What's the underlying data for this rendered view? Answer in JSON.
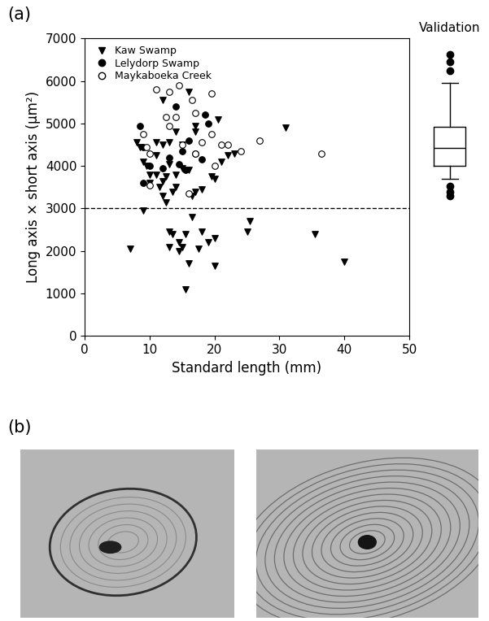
{
  "chart_data": {
    "type": "scatter",
    "panel_label": "(a)",
    "x_label": "Standard length (mm)",
    "y_label": "Long axis × short axis (µm²)",
    "xlim": [
      0,
      50
    ],
    "xticks": [
      0,
      10,
      20,
      30,
      40,
      50
    ],
    "ylim": [
      0,
      7000
    ],
    "yticks": [
      0,
      1000,
      2000,
      3000,
      4000,
      5000,
      6000,
      7000
    ],
    "legend": "upper left",
    "reference_line": {
      "y": 3000,
      "line_style": "dashed"
    },
    "series": [
      {
        "name": "Kaw Swamp",
        "color": "#000000",
        "marker": "triangle",
        "x": [
          7,
          8,
          8.5,
          9,
          9,
          9.5,
          10,
          11,
          11,
          11.5,
          12,
          12,
          12,
          12,
          12.5,
          12.5,
          13,
          13,
          13,
          13,
          13.5,
          14,
          14,
          14,
          14.5,
          14.5,
          15,
          15,
          15,
          15.5,
          15.5,
          16,
          16,
          16,
          16.5,
          16.5,
          17,
          17,
          17,
          17.5,
          18,
          18,
          19,
          19.5,
          20,
          20,
          20,
          20.5,
          21,
          22,
          23,
          25,
          25.5,
          31,
          35.5,
          40,
          13.5,
          11,
          10
        ],
        "values": [
          2050,
          4550,
          4450,
          2950,
          4100,
          4000,
          3600,
          4250,
          3800,
          3500,
          3650,
          5550,
          4500,
          3300,
          3150,
          3750,
          2100,
          2450,
          4050,
          4550,
          2400,
          4800,
          3800,
          3500,
          2000,
          2200,
          2100,
          3950,
          4500,
          1100,
          2400,
          1700,
          3900,
          5750,
          2800,
          3300,
          3400,
          4950,
          4800,
          2050,
          2450,
          3450,
          2200,
          3750,
          1650,
          2300,
          3700,
          5100,
          4100,
          4250,
          4300,
          2450,
          2700,
          4900,
          2400,
          1750,
          3400,
          4550,
          3800
        ]
      },
      {
        "name": "Lelydorp Swamp",
        "color": "#000000",
        "marker": "circle",
        "x": [
          8.5,
          9,
          9,
          10,
          13,
          14,
          14.5,
          15,
          15.5,
          16,
          17,
          18,
          18.5,
          19,
          12
        ],
        "values": [
          4950,
          3600,
          4450,
          4000,
          4200,
          5400,
          4050,
          4350,
          3900,
          4600,
          4300,
          4150,
          5200,
          5000,
          3950
        ]
      },
      {
        "name": "Maykaboeka Creek",
        "color": "#000000",
        "marker": "open_circle",
        "x": [
          9,
          9.5,
          10,
          11,
          12.5,
          13,
          13,
          14,
          14.5,
          15,
          16,
          16.5,
          17,
          18,
          19.5,
          19.5,
          20,
          21,
          22,
          24,
          27,
          36.5,
          10,
          17
        ],
        "values": [
          4750,
          4450,
          3550,
          5800,
          5150,
          5750,
          4950,
          5150,
          5900,
          4500,
          3350,
          5550,
          5250,
          4550,
          5700,
          4750,
          4000,
          4500,
          4500,
          4350,
          4600,
          4300,
          4300,
          4300
        ]
      }
    ],
    "boxplot": {
      "title": "Validation",
      "median": 4430,
      "q1": 4000,
      "q3": 4920,
      "whisker_low": 3700,
      "whisker_high": 5950,
      "outliers": [
        6250,
        6450,
        6620,
        3530,
        3400,
        3300
      ]
    }
  },
  "images": {
    "panel_label": "(b)"
  }
}
